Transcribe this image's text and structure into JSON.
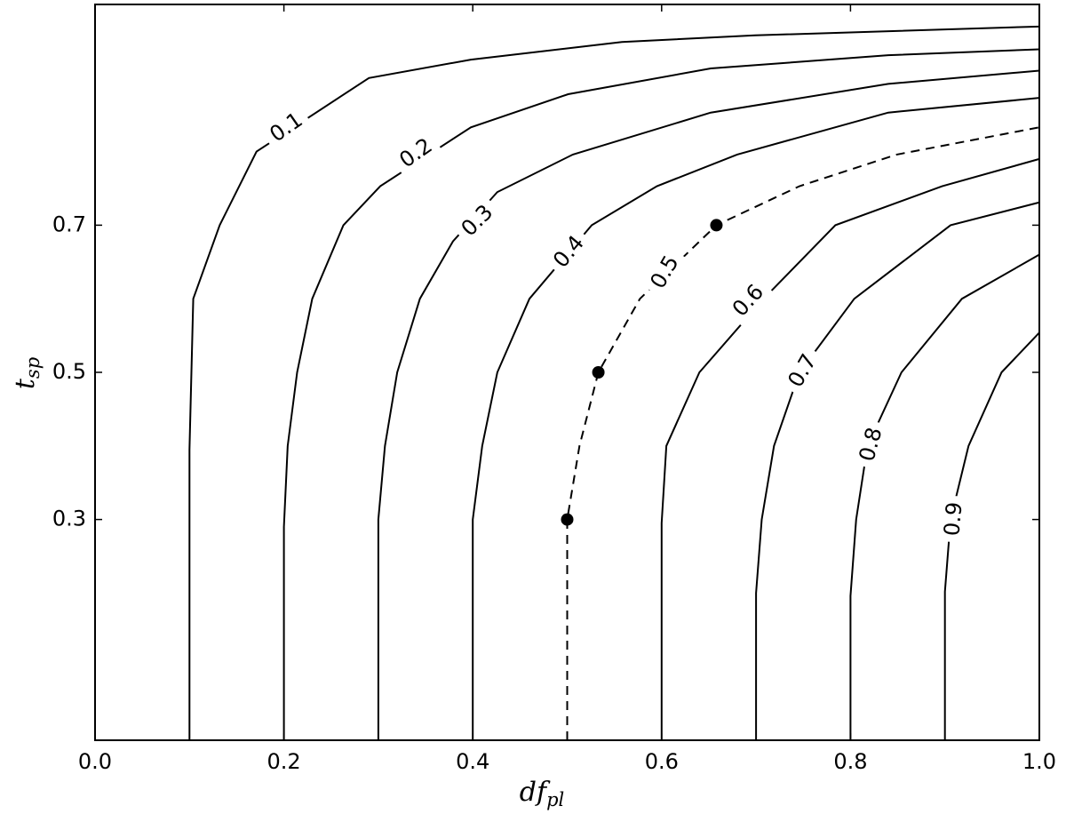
{
  "chart_data": {
    "type": "contour",
    "xlabel": "df",
    "xlabel_subscript": "pl",
    "ylabel": "t",
    "ylabel_subscript": "sp",
    "xlim": [
      0,
      1
    ],
    "ylim": [
      0,
      1
    ],
    "xticks": [
      {
        "value": 0,
        "label": "0.0"
      },
      0.2,
      0.4,
      0.6,
      0.8,
      {
        "value": 1,
        "label": "1.0"
      }
    ],
    "yticks": [
      0.3,
      0.5,
      0.7
    ],
    "color": "#000000",
    "contours": [
      {
        "level": 0.1,
        "style": "solid",
        "x": [
          0.1,
          0.1,
          0.104,
          0.132,
          0.171,
          0.29,
          0.398,
          0.558,
          0.699,
          1.0
        ],
        "y": [
          0,
          0.395,
          0.6,
          0.7,
          0.8,
          0.9,
          0.925,
          0.949,
          0.958,
          0.97
        ]
      },
      {
        "level": 0.2,
        "style": "solid",
        "x": [
          0.2,
          0.2,
          0.204,
          0.214,
          0.23,
          0.263,
          0.302,
          0.398,
          0.501,
          0.652,
          0.84,
          1.0
        ],
        "y": [
          0,
          0.29,
          0.4,
          0.5,
          0.6,
          0.7,
          0.753,
          0.833,
          0.878,
          0.913,
          0.931,
          0.939
        ]
      },
      {
        "level": 0.3,
        "style": "solid",
        "x": [
          0.3,
          0.3,
          0.307,
          0.32,
          0.344,
          0.379,
          0.426,
          0.506,
          0.652,
          0.84,
          1.0
        ],
        "y": [
          0,
          0.3,
          0.4,
          0.5,
          0.6,
          0.678,
          0.745,
          0.796,
          0.853,
          0.892,
          0.91
        ]
      },
      {
        "level": 0.4,
        "style": "solid",
        "x": [
          0.4,
          0.4,
          0.41,
          0.426,
          0.46,
          0.526,
          0.595,
          0.68,
          0.84,
          1.0
        ],
        "y": [
          0,
          0.3,
          0.4,
          0.5,
          0.6,
          0.7,
          0.753,
          0.796,
          0.853,
          0.873
        ]
      },
      {
        "level": 0.5,
        "style": "dashed",
        "x": [
          0.5,
          0.5,
          0.513,
          0.533,
          0.577,
          0.658,
          0.746,
          0.849,
          1.0
        ],
        "y": [
          0,
          0.3,
          0.4,
          0.5,
          0.6,
          0.7,
          0.753,
          0.796,
          0.833
        ]
      },
      {
        "level": 0.6,
        "style": "solid",
        "x": [
          0.6,
          0.6,
          0.605,
          0.64,
          0.708,
          0.784,
          0.897,
          1.0
        ],
        "y": [
          0,
          0.295,
          0.4,
          0.5,
          0.6,
          0.7,
          0.753,
          0.79
        ]
      },
      {
        "level": 0.7,
        "style": "solid",
        "x": [
          0.7,
          0.7,
          0.706,
          0.719,
          0.746,
          0.804,
          0.906,
          1.0
        ],
        "y": [
          0,
          0.2,
          0.3,
          0.4,
          0.5,
          0.6,
          0.7,
          0.731
        ]
      },
      {
        "level": 0.8,
        "style": "solid",
        "x": [
          0.8,
          0.8,
          0.806,
          0.818,
          0.854,
          0.918,
          1.0
        ],
        "y": [
          0,
          0.196,
          0.3,
          0.4,
          0.5,
          0.6,
          0.66
        ]
      },
      {
        "level": 0.9,
        "style": "solid",
        "x": [
          0.9,
          0.9,
          0.906,
          0.925,
          0.96,
          1.0
        ],
        "y": [
          0,
          0.202,
          0.3,
          0.4,
          0.5,
          0.554
        ]
      }
    ],
    "points": {
      "x": [
        0.5,
        0.533,
        0.658
      ],
      "y": [
        0.3,
        0.5,
        0.7
      ]
    }
  }
}
